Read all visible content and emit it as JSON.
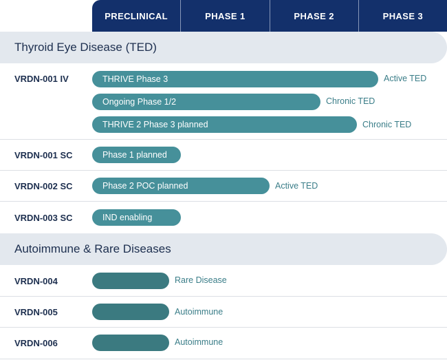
{
  "phases": [
    "PRECLINICAL",
    "PHASE 1",
    "PHASE 2",
    "PHASE 3"
  ],
  "sections": {
    "ted": {
      "title": "Thyroid Eye Disease (TED)"
    },
    "autoimmune": {
      "title": "Autoimmune & Rare Diseases"
    }
  },
  "programs": {
    "vrdn001iv": {
      "name": "VRDN-001 IV",
      "trials": [
        {
          "label": "THRIVE Phase 3",
          "indication": "Active TED"
        },
        {
          "label": "Ongoing Phase 1/2",
          "indication": "Chronic TED"
        },
        {
          "label": "THRIVE 2 Phase 3 planned",
          "indication": "Chronic TED"
        }
      ]
    },
    "vrdn001sc": {
      "name": "VRDN-001 SC",
      "trial": {
        "label": "Phase 1 planned",
        "indication": ""
      }
    },
    "vrdn002sc": {
      "name": "VRDN-002 SC",
      "trial": {
        "label": "Phase 2 POC planned",
        "indication": "Active TED"
      }
    },
    "vrdn003sc": {
      "name": "VRDN-003 SC",
      "trial": {
        "label": "IND enabling",
        "indication": ""
      }
    },
    "vrdn004": {
      "name": "VRDN-004",
      "trial": {
        "label": "",
        "indication": "Rare Disease"
      }
    },
    "vrdn005": {
      "name": "VRDN-005",
      "trial": {
        "label": "",
        "indication": "Autoimmune"
      }
    },
    "vrdn006": {
      "name": "VRDN-006",
      "trial": {
        "label": "",
        "indication": "Autoimmune"
      }
    }
  },
  "colors": {
    "header": "#13306b",
    "bar_teal": "#46909a",
    "bar_dark": "#3b7a80",
    "section_bg": "#e3e8ee"
  }
}
